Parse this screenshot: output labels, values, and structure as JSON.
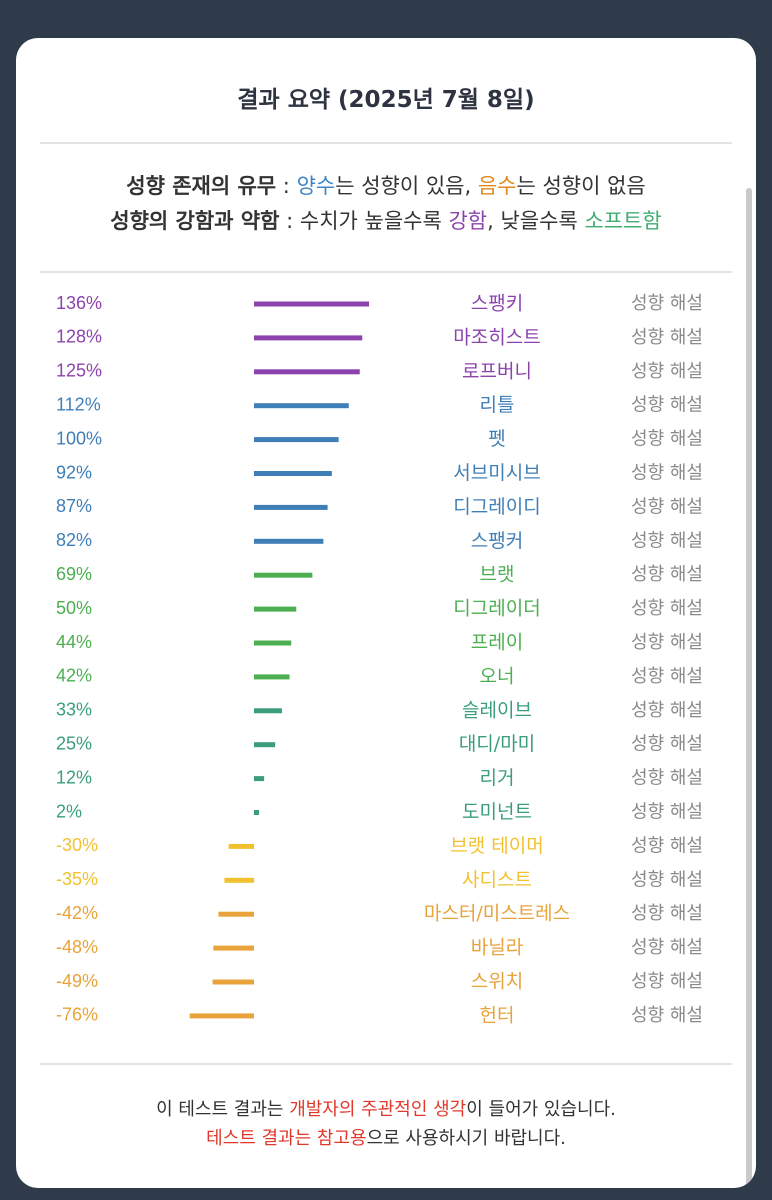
{
  "title": "결과 요약 (2025년 7월 8일)",
  "legend": {
    "line1": {
      "label": "성향 존재의 유무",
      "sep": " : ",
      "pos_word": "양수",
      "pos_text": "는 성향이 있음, ",
      "neg_word": "음수",
      "neg_text": "는 성향이 없음"
    },
    "line2": {
      "label": "성향의 강함과 약함",
      "sep": " : 수치가 높을수록 ",
      "strong_word": "강함",
      "mid_text": ", 낮을수록 ",
      "soft_word": "소프트함"
    }
  },
  "colors": {
    "purple": "#8d43ad",
    "blue": "#3f7fb8",
    "green": "#4caf50",
    "teal": "#3a9e7e",
    "yellow": "#f2c12e",
    "orange": "#e8a33a",
    "link": "#8a8a8a"
  },
  "chart_data": {
    "type": "bar",
    "orientation": "horizontal",
    "link_label": "성향 해설",
    "categories": [
      "스팽키",
      "마조히스트",
      "로프버니",
      "리틀",
      "펫",
      "서브미시브",
      "디그레이디",
      "스팽커",
      "브랫",
      "디그레이더",
      "프레이",
      "오너",
      "슬레이브",
      "대디/마미",
      "리거",
      "도미넌트",
      "브랫 테이머",
      "사디스트",
      "마스터/미스트레스",
      "바닐라",
      "스위치",
      "헌터"
    ],
    "value_labels": [
      "136%",
      "128%",
      "125%",
      "112%",
      "100%",
      "92%",
      "87%",
      "82%",
      "69%",
      "50%",
      "44%",
      "42%",
      "33%",
      "25%",
      "12%",
      "2%",
      "-30%",
      "-35%",
      "-42%",
      "-48%",
      "-49%",
      "-76%"
    ],
    "values": [
      136,
      128,
      125,
      112,
      100,
      92,
      87,
      82,
      69,
      50,
      44,
      42,
      33,
      25,
      12,
      2,
      -30,
      -35,
      -42,
      -48,
      -49,
      -76
    ],
    "color_keys": [
      "purple",
      "purple",
      "purple",
      "blue",
      "blue",
      "blue",
      "blue",
      "blue",
      "green",
      "green",
      "green",
      "green",
      "teal",
      "teal",
      "teal",
      "teal",
      "yellow",
      "yellow",
      "orange",
      "orange",
      "orange",
      "orange"
    ]
  },
  "footer": {
    "line1_a": "이 테스트 결과는 ",
    "line1_b": "개발자의 주관적인 생각",
    "line1_c": "이 들어가 있습니다.",
    "line2_a": "테스트 결과는 참고용",
    "line2_b": "으로 사용하시기 바랍니다."
  }
}
